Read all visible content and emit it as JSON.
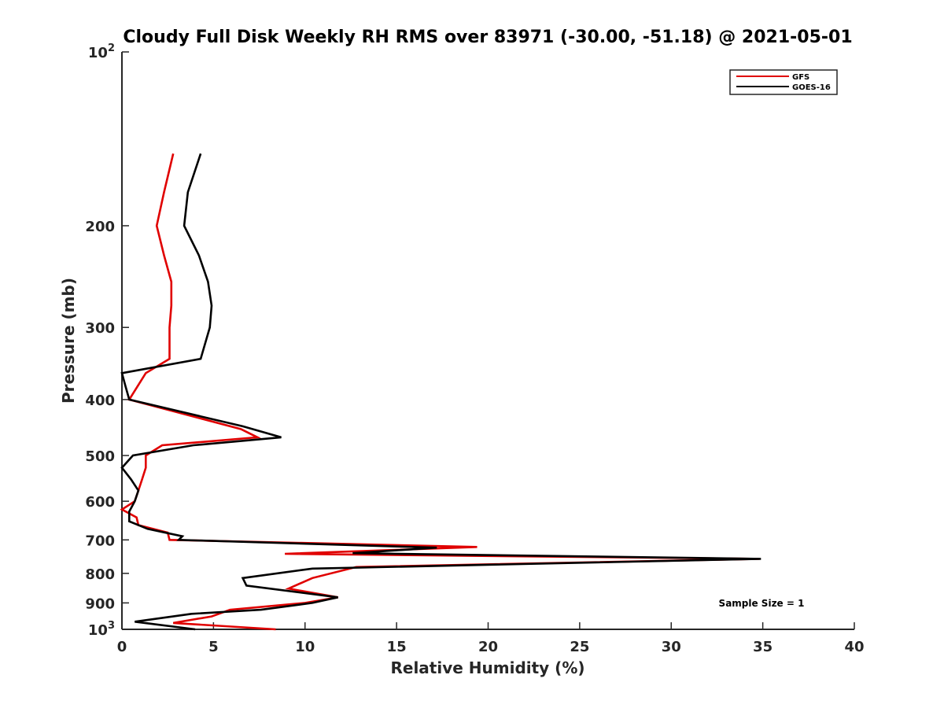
{
  "chart_data": {
    "type": "line",
    "title": "Cloudy Full Disk Weekly RH RMS over 83971 (-30.00, -51.18) @ 2021-05-01",
    "xlabel": "Relative Humidity (%)",
    "ylabel": "Pressure (mb)",
    "xlim": [
      0,
      40
    ],
    "ylim": [
      100,
      1000
    ],
    "yscale": "log",
    "y_reversed": true,
    "xticks": [
      "0",
      "5",
      "10",
      "15",
      "20",
      "25",
      "30",
      "35",
      "40"
    ],
    "yticks": [
      {
        "value": 100,
        "label": "10",
        "sup": "2"
      },
      {
        "value": 200,
        "label": "200"
      },
      {
        "value": 300,
        "label": "300"
      },
      {
        "value": 400,
        "label": "400"
      },
      {
        "value": 500,
        "label": "500"
      },
      {
        "value": 600,
        "label": "600"
      },
      {
        "value": 700,
        "label": "700"
      },
      {
        "value": 800,
        "label": "800"
      },
      {
        "value": 900,
        "label": "900"
      },
      {
        "value": 1000,
        "label": "10",
        "sup": "3"
      }
    ],
    "legend_position": "top-right",
    "series": [
      {
        "name": "GFS",
        "color": "#e00000",
        "points": [
          [
            2.8,
            150
          ],
          [
            2.3,
            175
          ],
          [
            1.9,
            200
          ],
          [
            2.3,
            225
          ],
          [
            2.7,
            250
          ],
          [
            2.7,
            275
          ],
          [
            2.6,
            300
          ],
          [
            2.6,
            325
          ],
          [
            2.6,
            340
          ],
          [
            1.3,
            360
          ],
          [
            0.4,
            400
          ],
          [
            6.5,
            450
          ],
          [
            7.4,
            465
          ],
          [
            2.2,
            480
          ],
          [
            1.3,
            500
          ],
          [
            1.3,
            525
          ],
          [
            1.1,
            550
          ],
          [
            0.9,
            575
          ],
          [
            0.7,
            600
          ],
          [
            0.0,
            620
          ],
          [
            0.8,
            640
          ],
          [
            0.9,
            660
          ],
          [
            2.5,
            680
          ],
          [
            2.6,
            700
          ],
          [
            19.4,
            720
          ],
          [
            8.9,
            740
          ],
          [
            34.8,
            755
          ],
          [
            12.8,
            780
          ],
          [
            10.4,
            815
          ],
          [
            9.1,
            850
          ],
          [
            11.8,
            880
          ],
          [
            10.0,
            900
          ],
          [
            5.9,
            925
          ],
          [
            4.9,
            950
          ],
          [
            2.8,
            975
          ],
          [
            8.4,
            1000
          ]
        ]
      },
      {
        "name": "GOES-16",
        "color": "#000000",
        "points": [
          [
            4.3,
            150
          ],
          [
            3.6,
            175
          ],
          [
            3.4,
            200
          ],
          [
            4.2,
            225
          ],
          [
            4.7,
            250
          ],
          [
            4.9,
            275
          ],
          [
            4.8,
            300
          ],
          [
            4.3,
            340
          ],
          [
            0.0,
            360
          ],
          [
            0.2,
            380
          ],
          [
            0.4,
            400
          ],
          [
            6.6,
            445
          ],
          [
            8.7,
            465
          ],
          [
            3.9,
            480
          ],
          [
            0.6,
            500
          ],
          [
            0.0,
            525
          ],
          [
            0.5,
            550
          ],
          [
            0.9,
            575
          ],
          [
            0.7,
            600
          ],
          [
            0.4,
            625
          ],
          [
            0.4,
            650
          ],
          [
            1.4,
            670
          ],
          [
            3.3,
            690
          ],
          [
            3.1,
            700
          ],
          [
            17.2,
            722
          ],
          [
            12.6,
            738
          ],
          [
            34.9,
            755
          ],
          [
            10.4,
            785
          ],
          [
            6.6,
            815
          ],
          [
            6.8,
            840
          ],
          [
            11.8,
            880
          ],
          [
            10.4,
            900
          ],
          [
            7.6,
            925
          ],
          [
            3.8,
            940
          ],
          [
            0.7,
            970
          ],
          [
            4.0,
            1000
          ]
        ]
      }
    ],
    "annotation": "Sample Size = 1"
  }
}
